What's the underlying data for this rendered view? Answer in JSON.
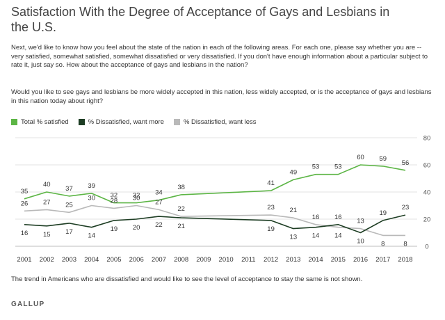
{
  "title": "Satisfaction With the Degree of Acceptance of Gays and Lesbians in the U.S.",
  "question_1": "Next, we'd like to know how you feel about the state of the nation in each of the following areas. For each one, please say whether you are -- very satisfied, somewhat satisfied, somewhat dissatisfied or very dissatisfied. If you don't have enough information about a particular subject to rate it, just say so. How about the acceptance of gays and lesbians in the nation?",
  "question_2": "Would you like to see gays and lesbians be more widely accepted in this nation, less widely accepted, or is the acceptance of gays and lesbians in this nation today about right?",
  "footnote": "The trend in Americans who are dissatisfied and would like to see the level of acceptance to stay the same is not shown.",
  "brand": "GALLUP",
  "chart_data": {
    "type": "line",
    "x": [
      2001,
      2002,
      2003,
      2004,
      2005,
      2006,
      2007,
      2008,
      2012,
      2013,
      2014,
      2015,
      2016,
      2017,
      2018
    ],
    "x_tick_labels": [
      "2001",
      "2002",
      "2003",
      "2004",
      "2005",
      "2006",
      "2007",
      "2008",
      "2009",
      "2010",
      "2011",
      "2012",
      "2013",
      "2014",
      "2015",
      "2016",
      "2017",
      "2018"
    ],
    "ylim": [
      0,
      80
    ],
    "y_ticks": [
      0,
      20,
      40,
      60,
      80
    ],
    "grid": true,
    "legend_position": "top-left",
    "series": [
      {
        "name": "Total % satisfied",
        "color": "#5cb545",
        "values": [
          35,
          40,
          37,
          39,
          32,
          32,
          34,
          38,
          41,
          49,
          53,
          53,
          60,
          59,
          56
        ]
      },
      {
        "name": "% Dissatisfied, want more",
        "color": "#1d3d23",
        "values": [
          16,
          15,
          17,
          14,
          19,
          20,
          22,
          21,
          19,
          13,
          14,
          16,
          10,
          19,
          23
        ]
      },
      {
        "name": "% Dissatisfied, want less",
        "color": "#b9b9b9",
        "values": [
          26,
          27,
          25,
          30,
          28,
          30,
          27,
          22,
          23,
          21,
          16,
          14,
          13,
          8,
          8
        ]
      }
    ]
  }
}
